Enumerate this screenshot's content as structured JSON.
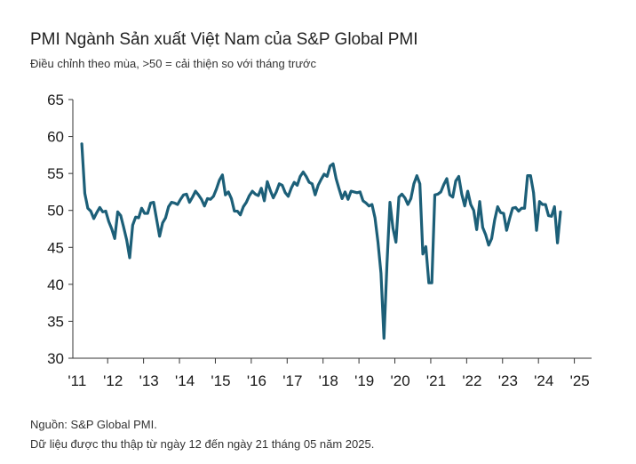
{
  "header": {
    "title": "PMI Ngành Sản xuất Việt Nam của S&P Global PMI",
    "subtitle": "Điều chỉnh theo mùa, >50 = cải thiện so với tháng trước"
  },
  "footer": {
    "source": "Nguồn: S&P Global PMI.",
    "note": "Dữ liệu được thu thập từ ngày 12 đến ngày 21 tháng 05 năm 2025."
  },
  "colors": {
    "line": "#1c5f78",
    "axis": "#333333"
  },
  "chart_data": {
    "type": "line",
    "title": "PMI Ngành Sản xuất Việt Nam của S&P Global PMI",
    "xlabel": "",
    "ylabel": "",
    "ylim": [
      30,
      65
    ],
    "yticks": [
      "30",
      "35",
      "40",
      "45",
      "50",
      "55",
      "60",
      "65"
    ],
    "xticks": [
      "'11",
      "'12",
      "'13",
      "'14",
      "'15",
      "'16",
      "'17",
      "'18",
      "'19",
      "'20",
      "'21",
      "'22",
      "'23",
      "'24",
      "'25"
    ],
    "x_start_year": 2011.25,
    "x_step_months": 1,
    "grid": false,
    "series": [
      {
        "name": "PMI",
        "values": [
          59.0,
          52.3,
          50.3,
          49.9,
          48.9,
          49.7,
          50.4,
          49.8,
          49.9,
          48.5,
          47.5,
          46.2,
          49.8,
          49.3,
          47.7,
          46.0,
          43.6,
          48.0,
          49.1,
          49.0,
          50.3,
          49.6,
          49.6,
          51.0,
          51.1,
          48.8,
          46.5,
          48.3,
          49.0,
          50.5,
          51.1,
          51.0,
          50.8,
          51.5,
          52.1,
          52.2,
          51.1,
          51.8,
          52.6,
          52.1,
          51.5,
          50.6,
          51.6,
          51.5,
          51.9,
          52.9,
          54.1,
          54.8,
          52.1,
          52.5,
          51.6,
          49.9,
          49.9,
          49.4,
          50.5,
          51.1,
          52.0,
          52.6,
          52.2,
          52.0,
          53.0,
          51.3,
          53.9,
          52.7,
          51.7,
          52.5,
          53.6,
          53.4,
          52.4,
          51.9,
          53.0,
          53.8,
          53.4,
          54.6,
          55.2,
          54.6,
          53.8,
          53.6,
          52.1,
          53.4,
          54.2,
          54.9,
          54.6,
          56.0,
          56.3,
          54.3,
          52.9,
          51.6,
          52.5,
          51.5,
          52.6,
          52.5,
          52.4,
          52.5,
          51.3,
          51.0,
          50.6,
          50.8,
          49.0,
          45.7,
          41.5,
          32.7,
          42.7,
          51.1,
          47.6,
          45.7,
          51.8,
          52.2,
          51.7,
          50.8,
          51.6,
          53.6,
          54.7,
          53.6,
          44.1,
          45.1,
          40.2,
          40.2,
          52.1,
          52.2,
          52.5,
          53.5,
          54.3,
          52.1,
          51.8,
          54.0,
          54.6,
          52.2,
          50.6,
          52.6,
          50.8,
          50.0,
          47.4,
          51.2,
          47.7,
          46.7,
          45.3,
          46.2,
          48.7,
          50.5,
          49.7,
          49.6,
          47.3,
          48.9,
          50.3,
          50.4,
          49.9,
          50.3,
          50.3,
          54.7,
          54.7,
          52.4,
          47.3,
          51.2,
          50.8,
          50.8,
          49.3,
          49.2,
          50.5,
          45.6,
          49.8
        ]
      }
    ]
  }
}
